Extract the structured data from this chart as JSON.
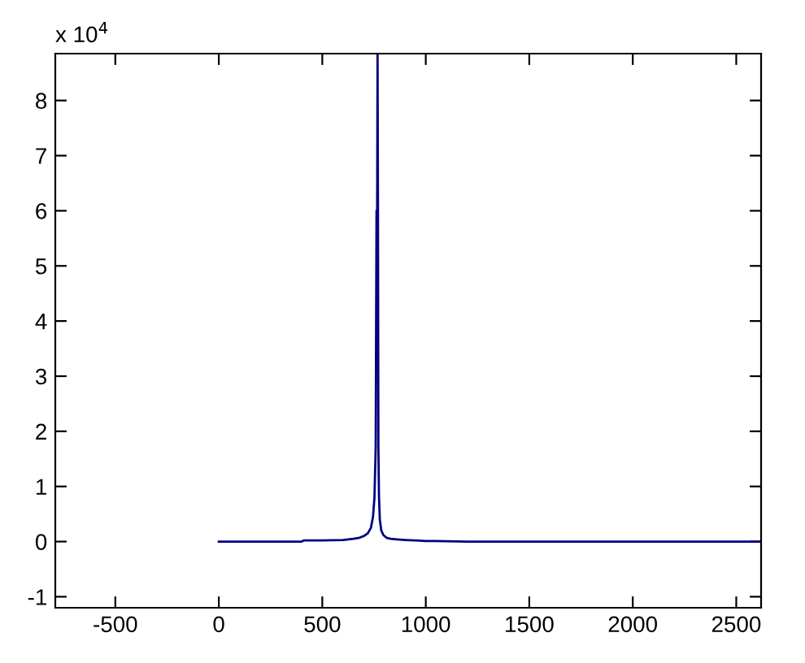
{
  "chart_data": {
    "type": "line",
    "x": [
      0,
      100,
      200,
      300,
      400,
      410,
      500,
      600,
      650,
      680,
      700,
      720,
      735,
      745,
      752,
      758,
      762,
      765,
      767,
      769,
      771,
      774,
      778,
      785,
      795,
      810,
      830,
      860,
      900,
      950,
      1000,
      1050,
      1200,
      1500,
      2000,
      2620
    ],
    "series": [
      {
        "color": "#00007f",
        "values": [
          0,
          0,
          0,
          0,
          0,
          0.02,
          0.02,
          0.03,
          0.05,
          0.07,
          0.1,
          0.15,
          0.25,
          0.45,
          0.8,
          1.7,
          6,
          6,
          8.85,
          6,
          1.7,
          0.8,
          0.4,
          0.2,
          0.12,
          0.07,
          0.05,
          0.04,
          0.03,
          0.02,
          0.01,
          0.01,
          0,
          0,
          0,
          0
        ]
      }
    ],
    "xlim": [
      -790,
      2620
    ],
    "ylim": [
      -1.2,
      8.85
    ],
    "xticks": [
      -500,
      0,
      500,
      1000,
      1500,
      2000,
      2500
    ],
    "yticks": [
      -1,
      0,
      1,
      2,
      3,
      4,
      5,
      6,
      7,
      8
    ],
    "annotations": [
      "x 10$^{4}$"
    ],
    "grid": false,
    "legend": false,
    "marker": "none",
    "line_style": "solid"
  }
}
